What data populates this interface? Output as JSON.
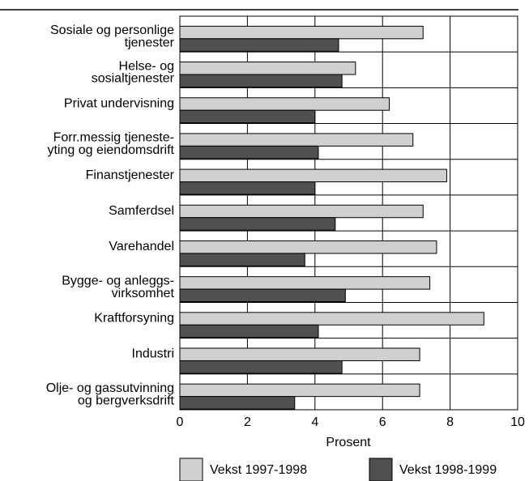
{
  "chart_data": {
    "type": "hbar",
    "categories": [
      [
        "Sosiale og personlige",
        "tjenester"
      ],
      [
        "Helse- og",
        "sosialtjenester"
      ],
      [
        "Privat undervisning"
      ],
      [
        "Forr.messig tjeneste-",
        "yting og eiendomsdrift"
      ],
      [
        "Finanstjenester"
      ],
      [
        "Samferdsel"
      ],
      [
        "Varehandel"
      ],
      [
        "Bygge- og anleggs-",
        "virksomhet"
      ],
      [
        "Kraftforsyning"
      ],
      [
        "Industri"
      ],
      [
        "Olje- og gassutvinning",
        "og bergverksdrift"
      ]
    ],
    "series": [
      {
        "name": "Vekst 1997-1998",
        "color": "#d0d0d0",
        "values": [
          7.2,
          5.2,
          6.2,
          6.9,
          7.9,
          7.2,
          7.6,
          7.4,
          9.0,
          7.1,
          7.1
        ]
      },
      {
        "name": "Vekst 1998-1999",
        "color": "#505050",
        "values": [
          4.7,
          4.8,
          4.0,
          4.1,
          4.0,
          4.6,
          3.7,
          4.9,
          4.1,
          4.8,
          3.4
        ]
      }
    ],
    "xlabel": "Prosent",
    "xlim": [
      0,
      10
    ],
    "xticks": [
      0,
      2,
      4,
      6,
      8,
      10
    ],
    "grid": true,
    "legend": "bottom"
  }
}
